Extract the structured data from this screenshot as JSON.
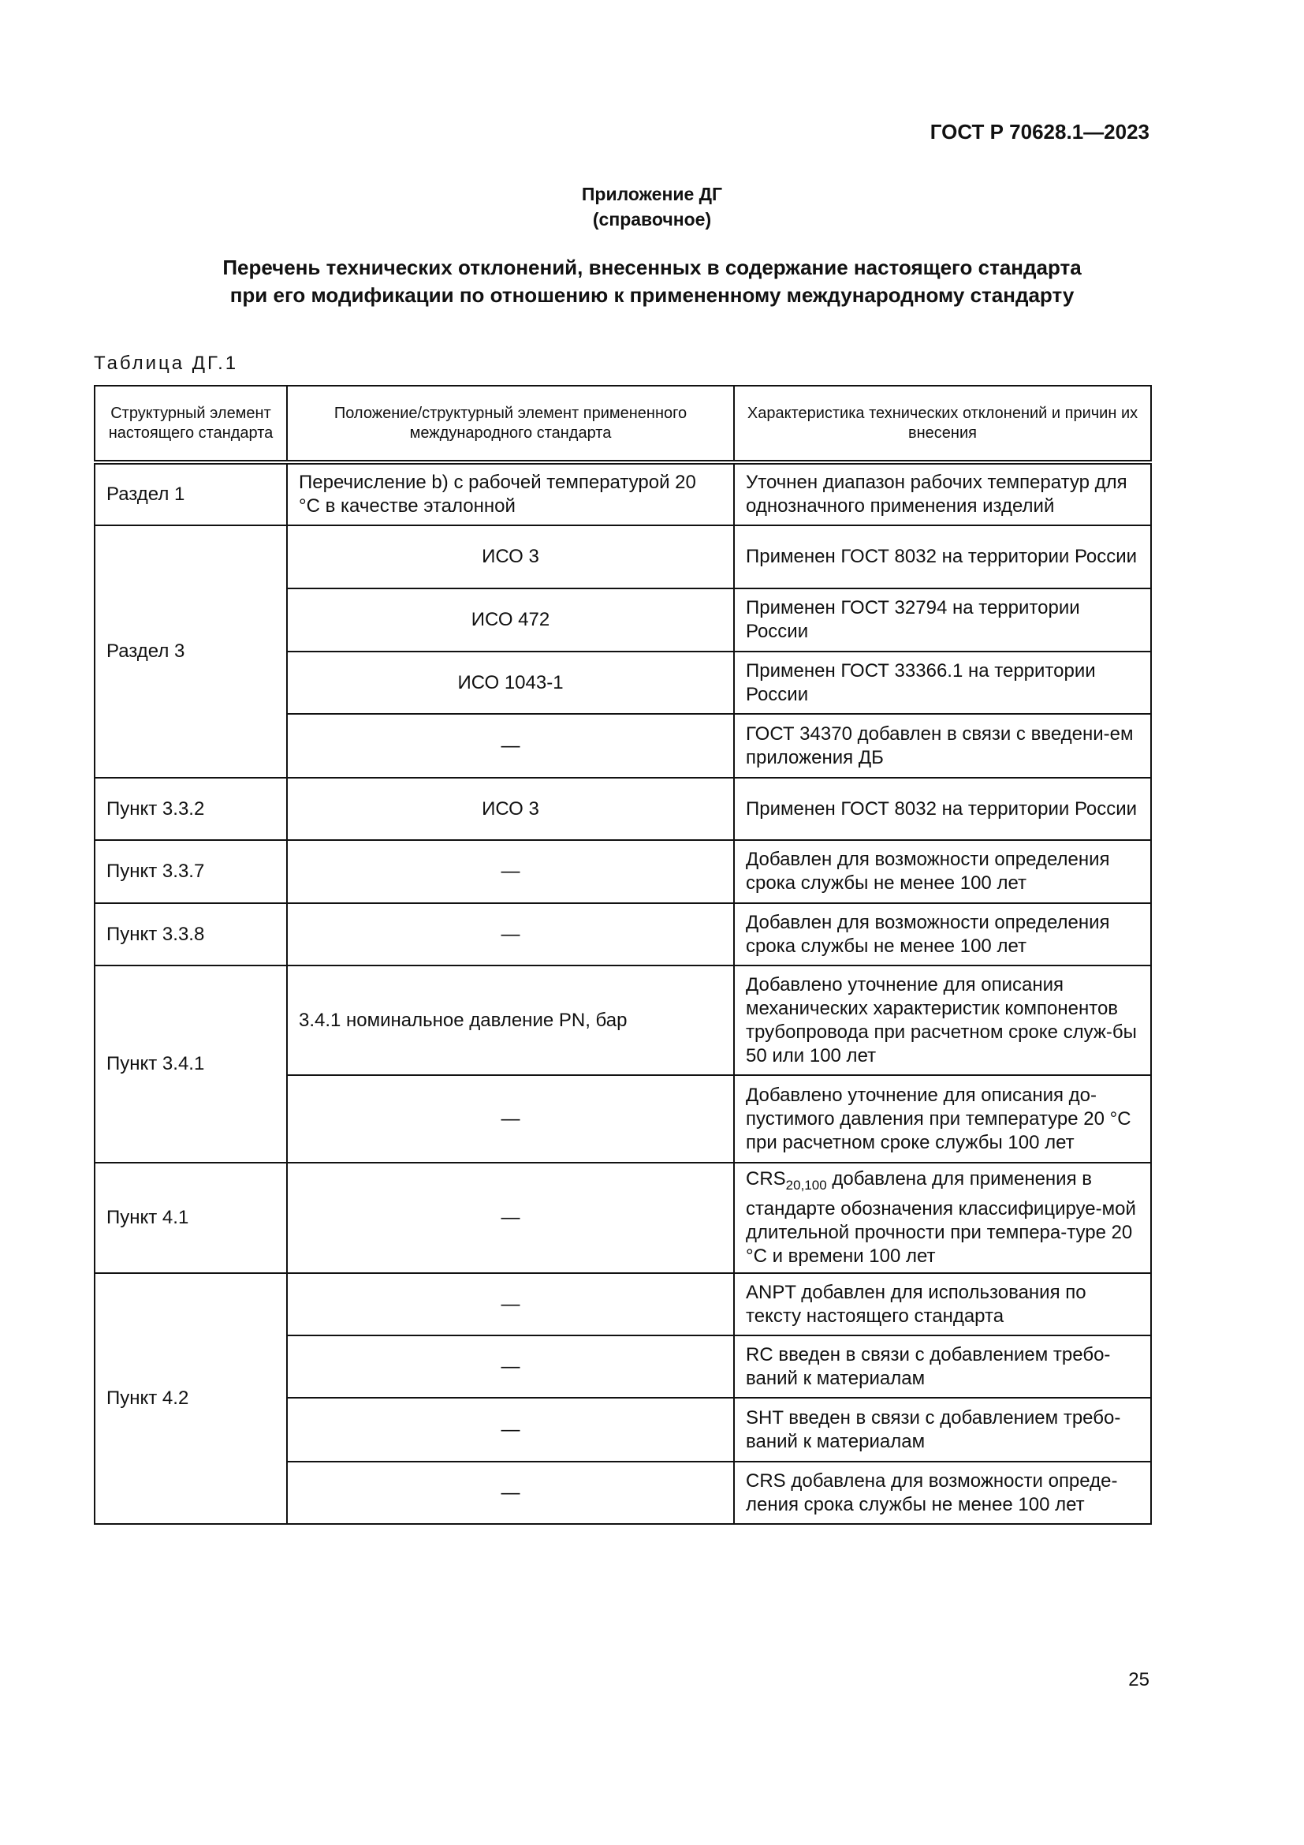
{
  "header": {
    "doc_code": "ГОСТ Р 70628.1—2023"
  },
  "annex": {
    "title": "Приложение ДГ",
    "kind": "(справочное)"
  },
  "title": {
    "line1": "Перечень технических отклонений, внесенных в содержание настоящего стандарта",
    "line2": "при его модификации по отношению к примененному международному стандарту"
  },
  "table": {
    "caption": "Таблица ДГ.1",
    "headers": [
      "Структурный элемент настоящего стандарта",
      "Положение/структурный элемент примененного международного стандарта",
      "Характеристика технических отклонений и причин их внесения"
    ],
    "groups": [
      {
        "element": "Раздел 1",
        "rows": [
          {
            "source": "Перечисление b) с рабочей температурой 20 °С в качестве эталонной",
            "note": "Уточнен диапазон рабочих температур для однозначного применения изделий"
          }
        ]
      },
      {
        "element": "Раздел 3",
        "rows": [
          {
            "source": "ИСО 3",
            "note": "Применен ГОСТ 8032 на территории России"
          },
          {
            "source": "ИСО 472",
            "note": "Применен ГОСТ 32794 на территории России"
          },
          {
            "source": "ИСО 1043-1",
            "note": "Применен ГОСТ 33366.1 на территории России"
          },
          {
            "source": "—",
            "note": "ГОСТ 34370 добавлен в связи с введени-ем приложения ДБ"
          }
        ]
      },
      {
        "element": "Пункт 3.3.2",
        "rows": [
          {
            "source": "ИСО 3",
            "note": "Применен ГОСТ 8032 на территории России"
          }
        ]
      },
      {
        "element": "Пункт 3.3.7",
        "rows": [
          {
            "source": "—",
            "note": "Добавлен для возможности определения срока службы не менее 100 лет"
          }
        ]
      },
      {
        "element": "Пункт 3.3.8",
        "rows": [
          {
            "source": "—",
            "note": "Добавлен для возможности определения срока службы не менее 100 лет"
          }
        ]
      },
      {
        "element": "Пункт 3.4.1",
        "rows": [
          {
            "source": "3.4.1 номинальное давление PN, бар",
            "note": "Добавлено уточнение для описания механических характеристик компонентов трубопровода при расчетном сроке служ-бы 50 или 100 лет"
          },
          {
            "source": "—",
            "note": "Добавлено уточнение для описания до-пустимого давления при температуре 20 °С при расчетном сроке службы 100 лет"
          }
        ]
      },
      {
        "element": "Пункт 4.1",
        "rows": [
          {
            "source": "—",
            "note_prefix": "CRS",
            "note_sub": "20,100",
            "note": " добавлена для применения в стандарте обозначения классифицируе-мой длительной прочности при темпера-туре 20 °С и времени 100 лет"
          }
        ]
      },
      {
        "element": "Пункт 4.2",
        "rows": [
          {
            "source": "—",
            "note": "ANPT добавлен для использования по тексту настоящего стандарта"
          },
          {
            "source": "—",
            "note": "RC введен в связи с добавлением требо-ваний к материалам"
          },
          {
            "source": "—",
            "note": "SHT введен в связи с добавлением требо-ваний к материалам"
          },
          {
            "source": "—",
            "note": "CRS добавлена для возможности опреде-ления срока службы не менее 100 лет"
          }
        ]
      }
    ]
  },
  "footer": {
    "page_number": "25"
  }
}
